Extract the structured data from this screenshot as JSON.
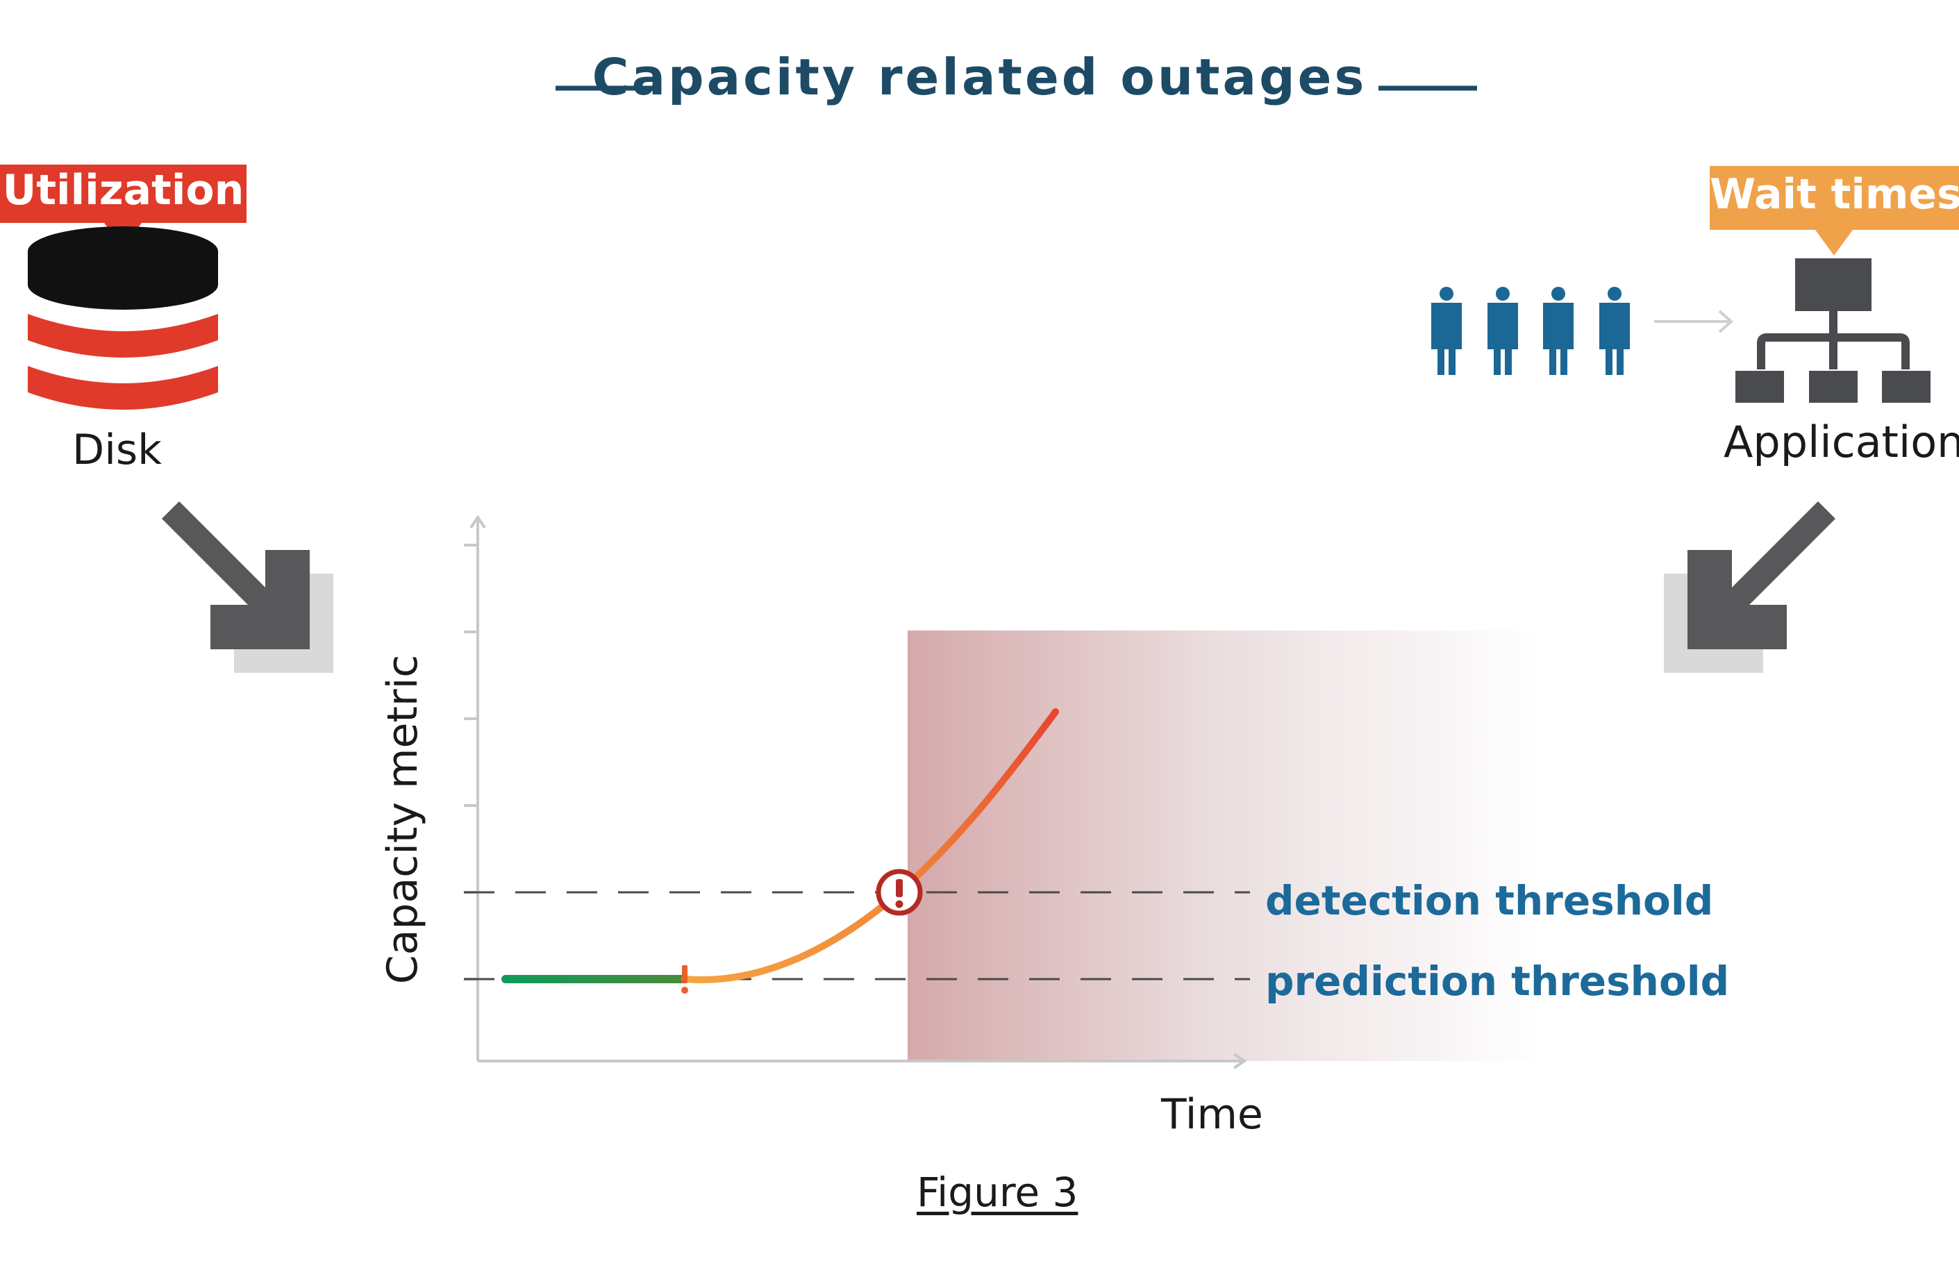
{
  "title": "Capacity related outages",
  "left": {
    "badge": "Utilization",
    "label": "Disk"
  },
  "right": {
    "badge": "Wait times",
    "label": "Application"
  },
  "chart": {
    "ylabel": "Capacity metric",
    "xlabel": "Time",
    "detection_label": "detection threshold",
    "prediction_label": "prediction threshold"
  },
  "caption": "Figure 3",
  "colors": {
    "title": "#1d4b66",
    "utilization_badge": "#e03a2b",
    "wait_badge": "#f0a24a",
    "users": "#1b6796",
    "arrow": "#58585a",
    "healthy_segment": "#0f9a5a",
    "curve_start": "#f5a340",
    "curve_end": "#e8452f",
    "alert": "#b52a25",
    "threshold_text": "#1c6a9a"
  },
  "icons": [
    "database-icon",
    "users-icon",
    "org-chart-icon",
    "arrow-down-right-icon",
    "arrow-down-left-icon",
    "exclamation-icon",
    "alert-circle-icon"
  ]
}
